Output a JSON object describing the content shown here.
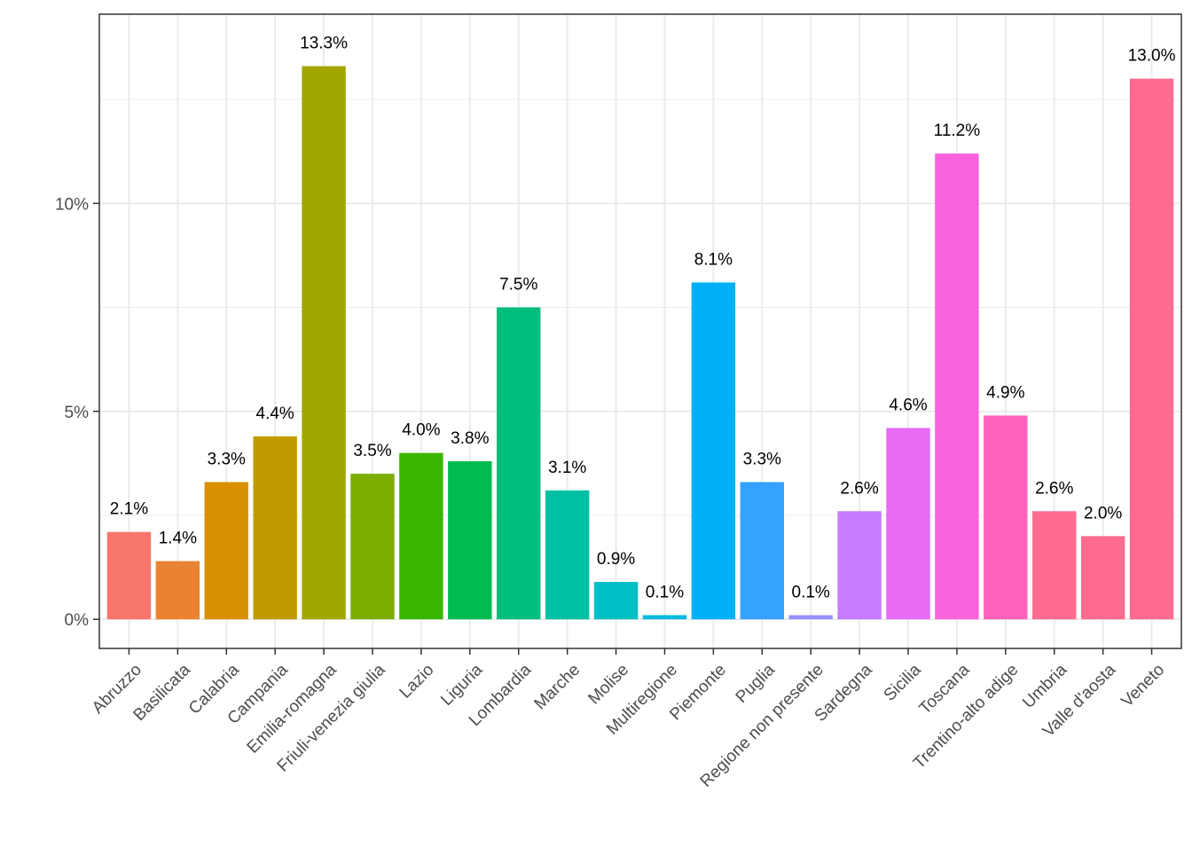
{
  "chart_data": {
    "type": "bar",
    "title": "",
    "xlabel": "",
    "ylabel": "",
    "ylim": [
      -0.007,
      0.1455
    ],
    "y_ticks": [
      {
        "value": 0,
        "label": "0%"
      },
      {
        "value": 0.05,
        "label": "5%"
      },
      {
        "value": 0.1,
        "label": "10%"
      }
    ],
    "y_minor_gridlines": [
      0.025,
      0.075,
      0.125
    ],
    "grid": true,
    "legend": "none",
    "categories": [
      "Abruzzo",
      "Basilicata",
      "Calabria",
      "Campania",
      "Emilia-romagna",
      "Friuli-venezia giulia",
      "Lazio",
      "Liguria",
      "Lombardia",
      "Marche",
      "Molise",
      "Multiregione",
      "Piemonte",
      "Puglia",
      "Regione non presente",
      "Sardegna",
      "Sicilia",
      "Toscana",
      "Trentino-alto adige",
      "Umbria",
      "Valle d'aosta",
      "Veneto"
    ],
    "values": [
      0.021,
      0.014,
      0.033,
      0.044,
      0.133,
      0.035,
      0.04,
      0.038,
      0.075,
      0.031,
      0.009,
      0.001,
      0.081,
      0.033,
      0.001,
      0.026,
      0.046,
      0.112,
      0.049,
      0.026,
      0.02,
      0.13
    ],
    "labels": [
      "2.1%",
      "1.4%",
      "3.3%",
      "4.4%",
      "13.3%",
      "3.5%",
      "4.0%",
      "3.8%",
      "7.5%",
      "3.1%",
      "0.9%",
      "0.1%",
      "8.1%",
      "3.3%",
      "0.1%",
      "2.6%",
      "4.6%",
      "11.2%",
      "4.9%",
      "2.6%",
      "2.0%",
      "13.0%"
    ],
    "colors": [
      "#F8766D",
      "#EA8331",
      "#D89000",
      "#C09B00",
      "#A3A500",
      "#7CAE00",
      "#39B600",
      "#00BB4E",
      "#00BF7D",
      "#00C1A3",
      "#00BFC4",
      "#00BAE0",
      "#00B0F6",
      "#35A2FF",
      "#9590FF",
      "#C77CFF",
      "#E76BF3",
      "#FA62DB",
      "#FF62BC",
      "#FF6C90",
      "#FF6C90",
      "#FF6C90"
    ]
  }
}
